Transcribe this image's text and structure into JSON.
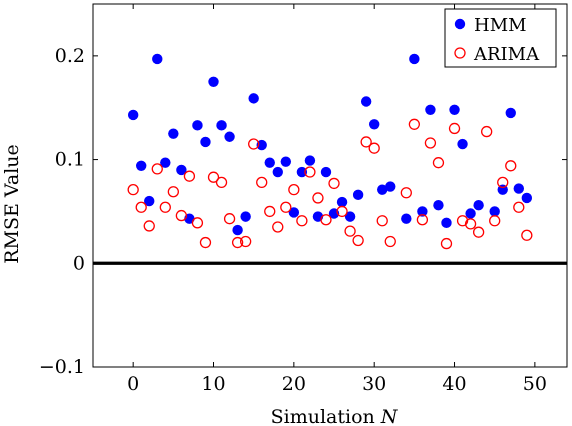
{
  "chart_data": {
    "type": "scatter",
    "xlabel": "Simulation",
    "xlabel_var": "N",
    "ylabel": "RMSE Value",
    "xlim": [
      -5,
      54
    ],
    "ylim": [
      -0.1,
      0.25
    ],
    "xticks": [
      0,
      10,
      20,
      30,
      40,
      50
    ],
    "yticks": [
      -0.1,
      0,
      0.1,
      0.2
    ],
    "ytick_labels": [
      "−0.1",
      "0",
      "0.1",
      "0.2"
    ],
    "grid": false,
    "legend_position": "top-right",
    "reference_line_y": 0,
    "series": [
      {
        "name": "HMM",
        "color": "#0000ff",
        "marker": "filled-circle",
        "x": [
          0,
          1,
          2,
          3,
          4,
          5,
          6,
          7,
          8,
          9,
          10,
          11,
          12,
          13,
          14,
          15,
          16,
          17,
          18,
          19,
          20,
          21,
          22,
          23,
          24,
          25,
          26,
          27,
          28,
          29,
          30,
          31,
          32,
          33,
          34,
          35,
          36,
          37,
          38,
          39,
          40,
          41,
          42,
          43,
          44,
          45,
          46,
          47,
          48,
          49
        ],
        "y": [
          0.143,
          0.094,
          0.06,
          0.197,
          0.097,
          0.125,
          0.09,
          0.043,
          0.133,
          0.117,
          0.175,
          0.133,
          0.122,
          0.032,
          0.045,
          0.159,
          0.114,
          0.097,
          0.088,
          0.098,
          0.049,
          0.088,
          0.099,
          0.045,
          0.088,
          0.048,
          0.059,
          0.045,
          0.066,
          0.156,
          0.134,
          0.071,
          0.074,
          null,
          0.043,
          0.197,
          0.05,
          0.148,
          0.056,
          0.039,
          0.148,
          0.115,
          0.048,
          0.056,
          null,
          0.05,
          0.071,
          0.145,
          0.072,
          0.063
        ]
      },
      {
        "name": "ARIMA",
        "color": "#ff0000",
        "marker": "open-circle",
        "x": [
          0,
          1,
          2,
          3,
          4,
          5,
          6,
          7,
          8,
          9,
          10,
          11,
          12,
          13,
          14,
          15,
          16,
          17,
          18,
          19,
          20,
          21,
          22,
          23,
          24,
          25,
          26,
          27,
          28,
          29,
          30,
          31,
          32,
          33,
          34,
          35,
          36,
          37,
          38,
          39,
          40,
          41,
          42,
          43,
          44,
          45,
          46,
          47,
          48,
          49
        ],
        "y": [
          0.071,
          0.054,
          0.036,
          0.091,
          0.054,
          0.069,
          0.046,
          0.084,
          0.039,
          0.02,
          0.083,
          0.078,
          0.043,
          0.02,
          0.021,
          0.115,
          0.078,
          0.05,
          0.035,
          0.054,
          0.071,
          0.041,
          0.088,
          0.063,
          0.042,
          0.077,
          0.05,
          0.031,
          0.022,
          0.117,
          0.111,
          0.041,
          0.021,
          null,
          0.068,
          0.134,
          0.042,
          0.116,
          0.097,
          0.019,
          0.13,
          0.041,
          0.038,
          0.03,
          0.127,
          0.041,
          0.078,
          0.094,
          0.054,
          0.027
        ]
      }
    ]
  }
}
